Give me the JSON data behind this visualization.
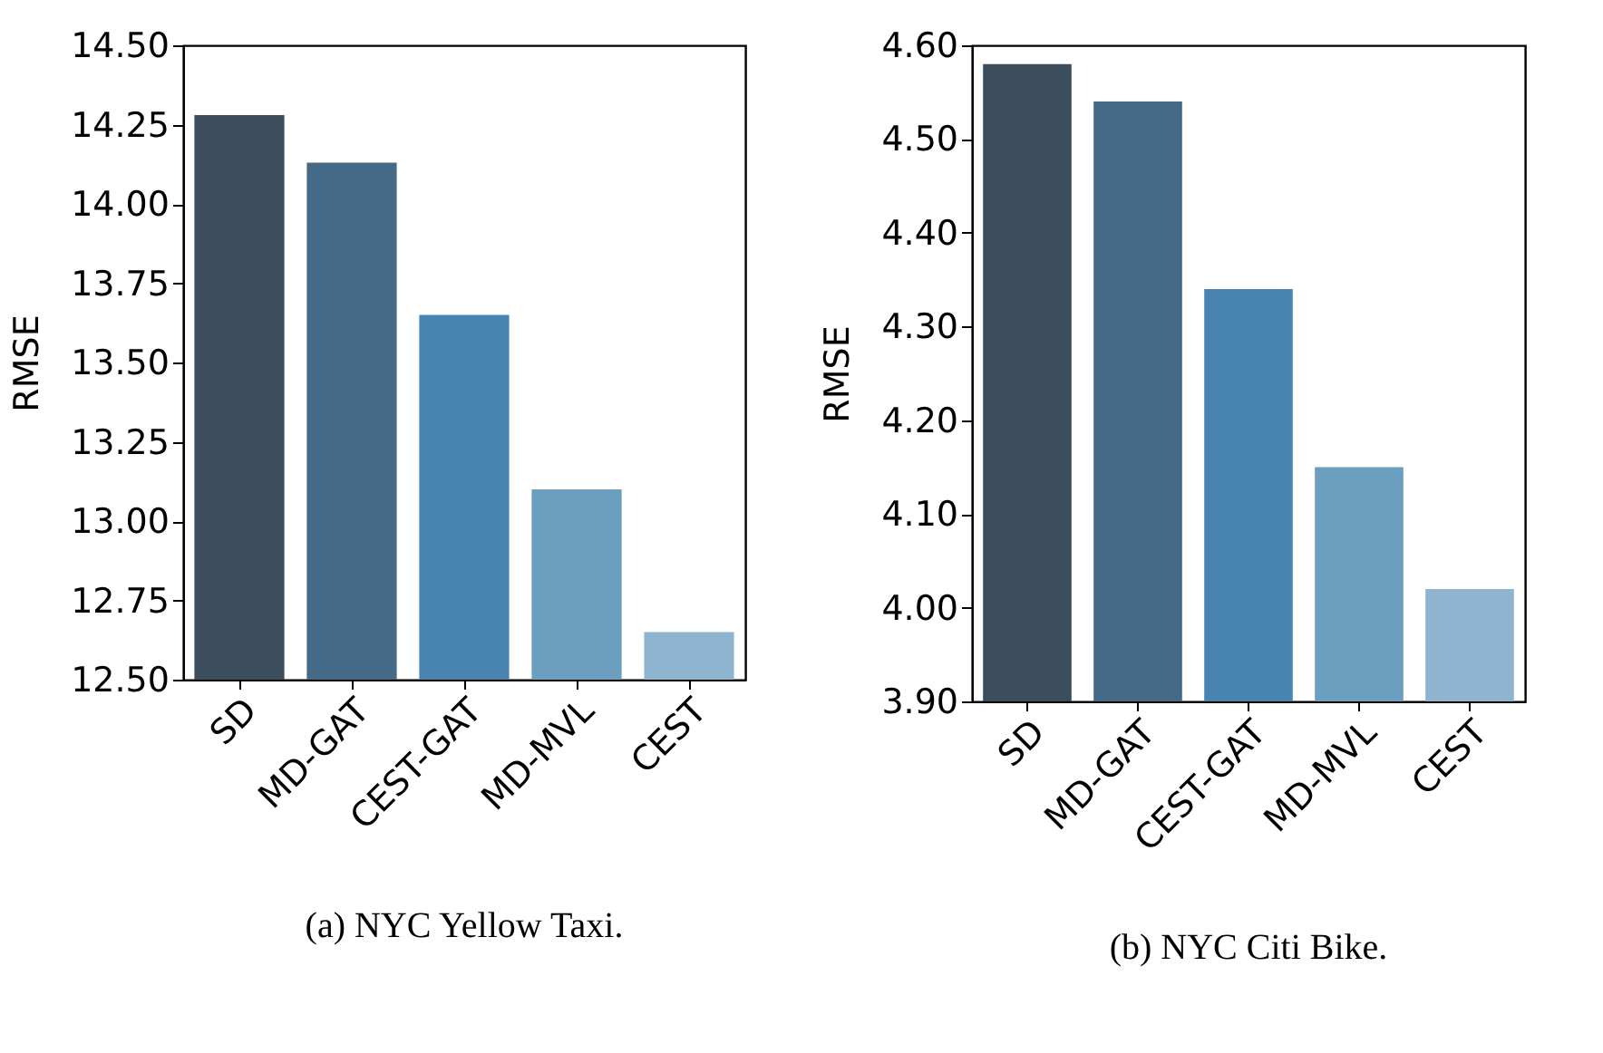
{
  "chart_data": [
    {
      "type": "bar",
      "title": "(a) NYC Yellow Taxi.",
      "ylabel": "RMSE",
      "categories": [
        "SD",
        "MD-GAT",
        "CEST-GAT",
        "MD-MVL",
        "CEST"
      ],
      "values": [
        14.28,
        14.13,
        13.65,
        13.1,
        12.65
      ],
      "colors": [
        "#3c4e5d",
        "#446a87",
        "#4a84b0",
        "#6c9ec0",
        "#8fb4cf"
      ],
      "ylim": [
        12.5,
        14.5
      ],
      "yticks": [
        {
          "value": 12.5,
          "label": "12.50"
        },
        {
          "value": 12.75,
          "label": "12.75"
        },
        {
          "value": 13.0,
          "label": "13.00"
        },
        {
          "value": 13.25,
          "label": "13.25"
        },
        {
          "value": 13.5,
          "label": "13.50"
        },
        {
          "value": 13.75,
          "label": "13.75"
        },
        {
          "value": 14.0,
          "label": "14.00"
        },
        {
          "value": 14.25,
          "label": "14.25"
        },
        {
          "value": 14.5,
          "label": "14.50"
        }
      ],
      "grid": false
    },
    {
      "type": "bar",
      "title": "(b) NYC Citi Bike.",
      "ylabel": "RMSE",
      "categories": [
        "SD",
        "MD-GAT",
        "CEST-GAT",
        "MD-MVL",
        "CEST"
      ],
      "values": [
        4.58,
        4.54,
        4.34,
        4.15,
        4.02
      ],
      "colors": [
        "#3c4e5d",
        "#446a87",
        "#4a84b0",
        "#6c9ec0",
        "#8fb4cf"
      ],
      "ylim": [
        3.9,
        4.6
      ],
      "yticks": [
        {
          "value": 3.9,
          "label": "3.90"
        },
        {
          "value": 4.0,
          "label": "4.00"
        },
        {
          "value": 4.1,
          "label": "4.10"
        },
        {
          "value": 4.2,
          "label": "4.20"
        },
        {
          "value": 4.3,
          "label": "4.30"
        },
        {
          "value": 4.4,
          "label": "4.40"
        },
        {
          "value": 4.5,
          "label": "4.50"
        },
        {
          "value": 4.6,
          "label": "4.60"
        }
      ],
      "grid": false
    }
  ]
}
